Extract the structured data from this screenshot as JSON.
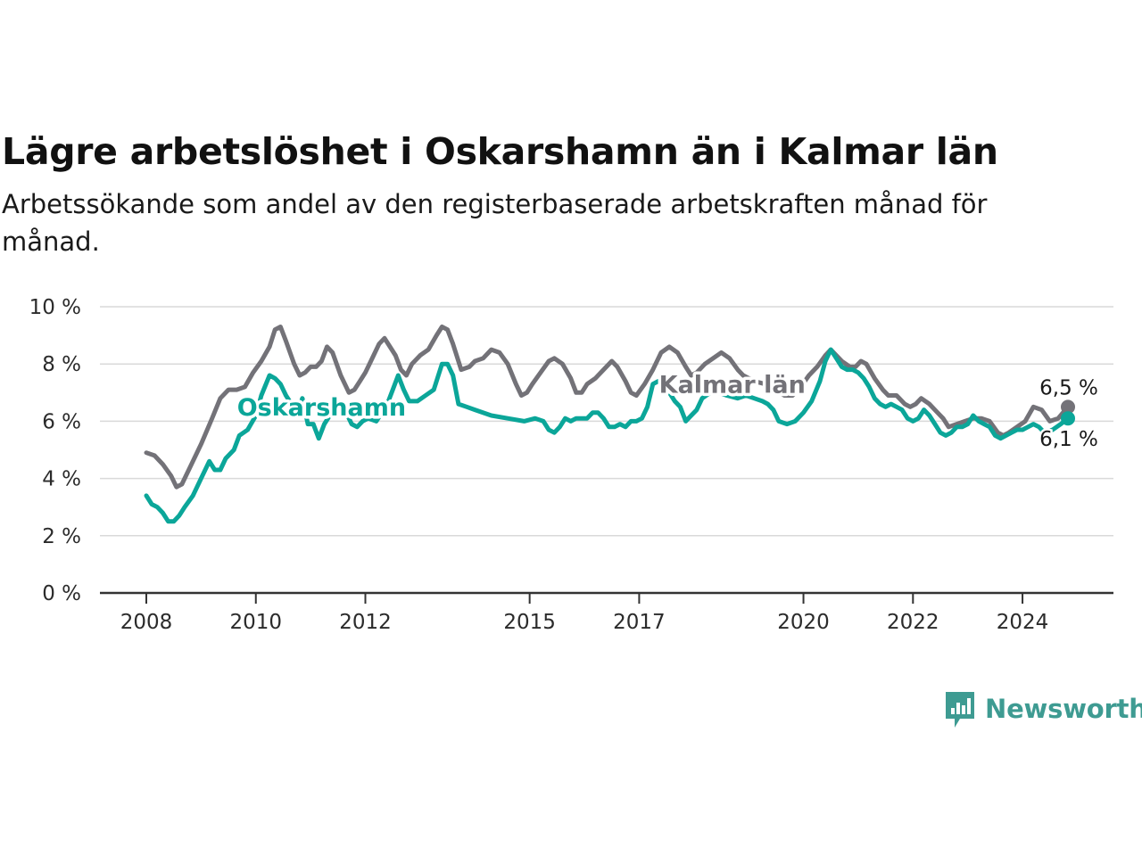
{
  "header": {
    "title": "Lägre arbetslöshet i Oskarshamn än i Kalmar län",
    "subtitle": "Arbetssökande som andel av den registerbaserade arbetskraften månad för månad."
  },
  "brand": {
    "name": "Newsworthy",
    "color": "#3e9b92",
    "icon": "newsworthy-logo-icon"
  },
  "chart_data": {
    "type": "line",
    "title": "Lägre arbetslöshet i Oskarshamn än i Kalmar län",
    "subtitle": "Arbetssökande som andel av den registerbaserade arbetskraften månad för månad.",
    "xlabel": "",
    "ylabel": "",
    "x_range": [
      2008.0,
      2024.83
    ],
    "ylim": [
      0,
      10
    ],
    "y_ticks": [
      {
        "value": 0,
        "label": "0 %"
      },
      {
        "value": 2,
        "label": "2 %"
      },
      {
        "value": 4,
        "label": "4 %"
      },
      {
        "value": 6,
        "label": "6 %"
      },
      {
        "value": 8,
        "label": "8 %"
      },
      {
        "value": 10,
        "label": "10 %"
      }
    ],
    "x_ticks": [
      {
        "value": 2008,
        "label": "2008"
      },
      {
        "value": 2010,
        "label": "2010"
      },
      {
        "value": 2012,
        "label": "2012"
      },
      {
        "value": 2015,
        "label": "2015"
      },
      {
        "value": 2017,
        "label": "2017"
      },
      {
        "value": 2020,
        "label": "2020"
      },
      {
        "value": 2022,
        "label": "2022"
      },
      {
        "value": 2024,
        "label": "2024"
      }
    ],
    "grid": true,
    "legend": "inline labels",
    "series": [
      {
        "name": "Kalmar län",
        "color": "#737278",
        "end_label": "6,5 %",
        "label_at": [
          2018.7,
          7.0
        ],
        "points": [
          [
            2008.0,
            4.9
          ],
          [
            2008.15,
            4.8
          ],
          [
            2008.3,
            4.5
          ],
          [
            2008.45,
            4.1
          ],
          [
            2008.55,
            3.7
          ],
          [
            2008.65,
            3.8
          ],
          [
            2008.8,
            4.4
          ],
          [
            2009.0,
            5.2
          ],
          [
            2009.2,
            6.1
          ],
          [
            2009.35,
            6.8
          ],
          [
            2009.5,
            7.1
          ],
          [
            2009.65,
            7.1
          ],
          [
            2009.8,
            7.2
          ],
          [
            2009.95,
            7.7
          ],
          [
            2010.1,
            8.1
          ],
          [
            2010.25,
            8.6
          ],
          [
            2010.35,
            9.2
          ],
          [
            2010.45,
            9.3
          ],
          [
            2010.55,
            8.8
          ],
          [
            2010.7,
            8.0
          ],
          [
            2010.8,
            7.6
          ],
          [
            2010.9,
            7.7
          ],
          [
            2011.0,
            7.9
          ],
          [
            2011.1,
            7.9
          ],
          [
            2011.2,
            8.1
          ],
          [
            2011.3,
            8.6
          ],
          [
            2011.4,
            8.4
          ],
          [
            2011.55,
            7.6
          ],
          [
            2011.7,
            7.0
          ],
          [
            2011.8,
            7.1
          ],
          [
            2011.9,
            7.4
          ],
          [
            2012.0,
            7.7
          ],
          [
            2012.1,
            8.1
          ],
          [
            2012.25,
            8.7
          ],
          [
            2012.35,
            8.9
          ],
          [
            2012.45,
            8.6
          ],
          [
            2012.55,
            8.3
          ],
          [
            2012.65,
            7.8
          ],
          [
            2012.75,
            7.6
          ],
          [
            2012.85,
            8.0
          ],
          [
            2013.0,
            8.3
          ],
          [
            2013.15,
            8.5
          ],
          [
            2013.3,
            9.0
          ],
          [
            2013.4,
            9.3
          ],
          [
            2013.5,
            9.2
          ],
          [
            2013.6,
            8.7
          ],
          [
            2013.75,
            7.8
          ],
          [
            2013.9,
            7.9
          ],
          [
            2014.0,
            8.1
          ],
          [
            2014.15,
            8.2
          ],
          [
            2014.3,
            8.5
          ],
          [
            2014.45,
            8.4
          ],
          [
            2014.6,
            8.0
          ],
          [
            2014.75,
            7.3
          ],
          [
            2014.85,
            6.9
          ],
          [
            2014.95,
            7.0
          ],
          [
            2015.05,
            7.3
          ],
          [
            2015.2,
            7.7
          ],
          [
            2015.35,
            8.1
          ],
          [
            2015.45,
            8.2
          ],
          [
            2015.6,
            8.0
          ],
          [
            2015.75,
            7.5
          ],
          [
            2015.85,
            7.0
          ],
          [
            2015.95,
            7.0
          ],
          [
            2016.05,
            7.3
          ],
          [
            2016.2,
            7.5
          ],
          [
            2016.35,
            7.8
          ],
          [
            2016.5,
            8.1
          ],
          [
            2016.6,
            7.9
          ],
          [
            2016.75,
            7.4
          ],
          [
            2016.85,
            7.0
          ],
          [
            2016.95,
            6.9
          ],
          [
            2017.1,
            7.3
          ],
          [
            2017.25,
            7.8
          ],
          [
            2017.4,
            8.4
          ],
          [
            2017.55,
            8.6
          ],
          [
            2017.7,
            8.4
          ],
          [
            2017.85,
            7.9
          ],
          [
            2017.95,
            7.6
          ],
          [
            2018.05,
            7.7
          ],
          [
            2018.2,
            8.0
          ],
          [
            2018.35,
            8.2
          ],
          [
            2018.5,
            8.4
          ],
          [
            2018.65,
            8.2
          ],
          [
            2018.8,
            7.8
          ],
          [
            2018.9,
            7.6
          ],
          [
            2019.1,
            7.4
          ],
          [
            2019.3,
            7.3
          ],
          [
            2019.5,
            7.1
          ],
          [
            2019.65,
            6.9
          ],
          [
            2019.8,
            6.9
          ],
          [
            2019.95,
            7.2
          ],
          [
            2020.1,
            7.6
          ],
          [
            2020.25,
            7.9
          ],
          [
            2020.4,
            8.3
          ],
          [
            2020.5,
            8.5
          ],
          [
            2020.6,
            8.3
          ],
          [
            2020.7,
            8.1
          ],
          [
            2020.85,
            7.9
          ],
          [
            2020.95,
            7.9
          ],
          [
            2021.05,
            8.1
          ],
          [
            2021.15,
            8.0
          ],
          [
            2021.3,
            7.5
          ],
          [
            2021.45,
            7.1
          ],
          [
            2021.55,
            6.9
          ],
          [
            2021.7,
            6.9
          ],
          [
            2021.85,
            6.6
          ],
          [
            2021.95,
            6.5
          ],
          [
            2022.05,
            6.6
          ],
          [
            2022.15,
            6.8
          ],
          [
            2022.3,
            6.6
          ],
          [
            2022.45,
            6.3
          ],
          [
            2022.55,
            6.1
          ],
          [
            2022.65,
            5.8
          ],
          [
            2022.8,
            5.9
          ],
          [
            2022.95,
            6.0
          ],
          [
            2023.1,
            6.1
          ],
          [
            2023.25,
            6.1
          ],
          [
            2023.4,
            6.0
          ],
          [
            2023.55,
            5.6
          ],
          [
            2023.65,
            5.5
          ],
          [
            2023.75,
            5.6
          ],
          [
            2023.9,
            5.8
          ],
          [
            2024.05,
            6.0
          ],
          [
            2024.2,
            6.5
          ],
          [
            2024.35,
            6.4
          ],
          [
            2024.5,
            6.0
          ],
          [
            2024.65,
            6.1
          ],
          [
            2024.83,
            6.5
          ]
        ]
      },
      {
        "name": "Oskarshamn",
        "color": "#0ba699",
        "end_label": "6,1 %",
        "label_at": [
          2011.2,
          6.2
        ],
        "points": [
          [
            2008.0,
            3.4
          ],
          [
            2008.1,
            3.1
          ],
          [
            2008.2,
            3.0
          ],
          [
            2008.3,
            2.8
          ],
          [
            2008.4,
            2.5
          ],
          [
            2008.5,
            2.5
          ],
          [
            2008.6,
            2.7
          ],
          [
            2008.7,
            3.0
          ],
          [
            2008.85,
            3.4
          ],
          [
            2009.0,
            4.0
          ],
          [
            2009.15,
            4.6
          ],
          [
            2009.25,
            4.3
          ],
          [
            2009.35,
            4.3
          ],
          [
            2009.45,
            4.7
          ],
          [
            2009.6,
            5.0
          ],
          [
            2009.7,
            5.5
          ],
          [
            2009.85,
            5.7
          ],
          [
            2010.0,
            6.2
          ],
          [
            2010.1,
            6.9
          ],
          [
            2010.25,
            7.6
          ],
          [
            2010.35,
            7.5
          ],
          [
            2010.45,
            7.3
          ],
          [
            2010.55,
            6.9
          ],
          [
            2010.65,
            6.6
          ],
          [
            2010.75,
            6.3
          ],
          [
            2010.85,
            6.8
          ],
          [
            2010.95,
            5.9
          ],
          [
            2011.05,
            5.9
          ],
          [
            2011.15,
            5.4
          ],
          [
            2011.25,
            5.9
          ],
          [
            2011.35,
            6.2
          ],
          [
            2011.45,
            6.5
          ],
          [
            2011.55,
            6.3
          ],
          [
            2011.65,
            6.3
          ],
          [
            2011.75,
            5.9
          ],
          [
            2011.85,
            5.8
          ],
          [
            2011.95,
            6.0
          ],
          [
            2012.05,
            6.1
          ],
          [
            2012.2,
            6.0
          ],
          [
            2012.3,
            6.3
          ],
          [
            2012.4,
            6.6
          ],
          [
            2012.5,
            7.1
          ],
          [
            2012.6,
            7.6
          ],
          [
            2012.7,
            7.1
          ],
          [
            2012.8,
            6.7
          ],
          [
            2012.95,
            6.7
          ],
          [
            2013.1,
            6.9
          ],
          [
            2013.25,
            7.1
          ],
          [
            2013.4,
            8.0
          ],
          [
            2013.5,
            8.0
          ],
          [
            2013.6,
            7.6
          ],
          [
            2013.7,
            6.6
          ],
          [
            2013.85,
            6.5
          ],
          [
            2014.0,
            6.4
          ],
          [
            2014.3,
            6.2
          ],
          [
            2014.6,
            6.1
          ],
          [
            2014.9,
            6.0
          ],
          [
            2015.1,
            6.1
          ],
          [
            2015.25,
            6.0
          ],
          [
            2015.35,
            5.7
          ],
          [
            2015.45,
            5.6
          ],
          [
            2015.55,
            5.8
          ],
          [
            2015.65,
            6.1
          ],
          [
            2015.75,
            6.0
          ],
          [
            2015.85,
            6.1
          ],
          [
            2015.95,
            6.1
          ],
          [
            2016.05,
            6.1
          ],
          [
            2016.15,
            6.3
          ],
          [
            2016.25,
            6.3
          ],
          [
            2016.35,
            6.1
          ],
          [
            2016.45,
            5.8
          ],
          [
            2016.55,
            5.8
          ],
          [
            2016.65,
            5.9
          ],
          [
            2016.75,
            5.8
          ],
          [
            2016.85,
            6.0
          ],
          [
            2016.95,
            6.0
          ],
          [
            2017.05,
            6.1
          ],
          [
            2017.15,
            6.5
          ],
          [
            2017.25,
            7.3
          ],
          [
            2017.35,
            7.4
          ],
          [
            2017.45,
            7.3
          ],
          [
            2017.55,
            7.0
          ],
          [
            2017.65,
            6.7
          ],
          [
            2017.75,
            6.5
          ],
          [
            2017.85,
            6.0
          ],
          [
            2017.95,
            6.2
          ],
          [
            2018.05,
            6.4
          ],
          [
            2018.15,
            6.8
          ],
          [
            2018.3,
            7.0
          ],
          [
            2018.45,
            7.0
          ],
          [
            2018.6,
            6.9
          ],
          [
            2018.8,
            6.8
          ],
          [
            2018.95,
            6.9
          ],
          [
            2019.1,
            6.8
          ],
          [
            2019.25,
            6.7
          ],
          [
            2019.35,
            6.6
          ],
          [
            2019.45,
            6.4
          ],
          [
            2019.55,
            6.0
          ],
          [
            2019.7,
            5.9
          ],
          [
            2019.85,
            6.0
          ],
          [
            2020.0,
            6.3
          ],
          [
            2020.15,
            6.7
          ],
          [
            2020.3,
            7.4
          ],
          [
            2020.4,
            8.1
          ],
          [
            2020.5,
            8.5
          ],
          [
            2020.6,
            8.2
          ],
          [
            2020.7,
            7.9
          ],
          [
            2020.8,
            7.8
          ],
          [
            2020.9,
            7.8
          ],
          [
            2021.0,
            7.7
          ],
          [
            2021.1,
            7.5
          ],
          [
            2021.2,
            7.2
          ],
          [
            2021.3,
            6.8
          ],
          [
            2021.4,
            6.6
          ],
          [
            2021.5,
            6.5
          ],
          [
            2021.6,
            6.6
          ],
          [
            2021.7,
            6.5
          ],
          [
            2021.8,
            6.4
          ],
          [
            2021.9,
            6.1
          ],
          [
            2022.0,
            6.0
          ],
          [
            2022.1,
            6.1
          ],
          [
            2022.2,
            6.4
          ],
          [
            2022.3,
            6.2
          ],
          [
            2022.4,
            5.9
          ],
          [
            2022.5,
            5.6
          ],
          [
            2022.6,
            5.5
          ],
          [
            2022.7,
            5.6
          ],
          [
            2022.8,
            5.8
          ],
          [
            2022.9,
            5.8
          ],
          [
            2023.0,
            5.9
          ],
          [
            2023.1,
            6.2
          ],
          [
            2023.2,
            6.0
          ],
          [
            2023.3,
            5.9
          ],
          [
            2023.4,
            5.8
          ],
          [
            2023.5,
            5.5
          ],
          [
            2023.6,
            5.4
          ],
          [
            2023.7,
            5.5
          ],
          [
            2023.8,
            5.6
          ],
          [
            2023.9,
            5.7
          ],
          [
            2024.0,
            5.7
          ],
          [
            2024.1,
            5.8
          ],
          [
            2024.2,
            5.9
          ],
          [
            2024.3,
            5.8
          ],
          [
            2024.4,
            5.6
          ],
          [
            2024.55,
            5.7
          ],
          [
            2024.7,
            5.9
          ],
          [
            2024.83,
            6.1
          ]
        ]
      }
    ]
  }
}
